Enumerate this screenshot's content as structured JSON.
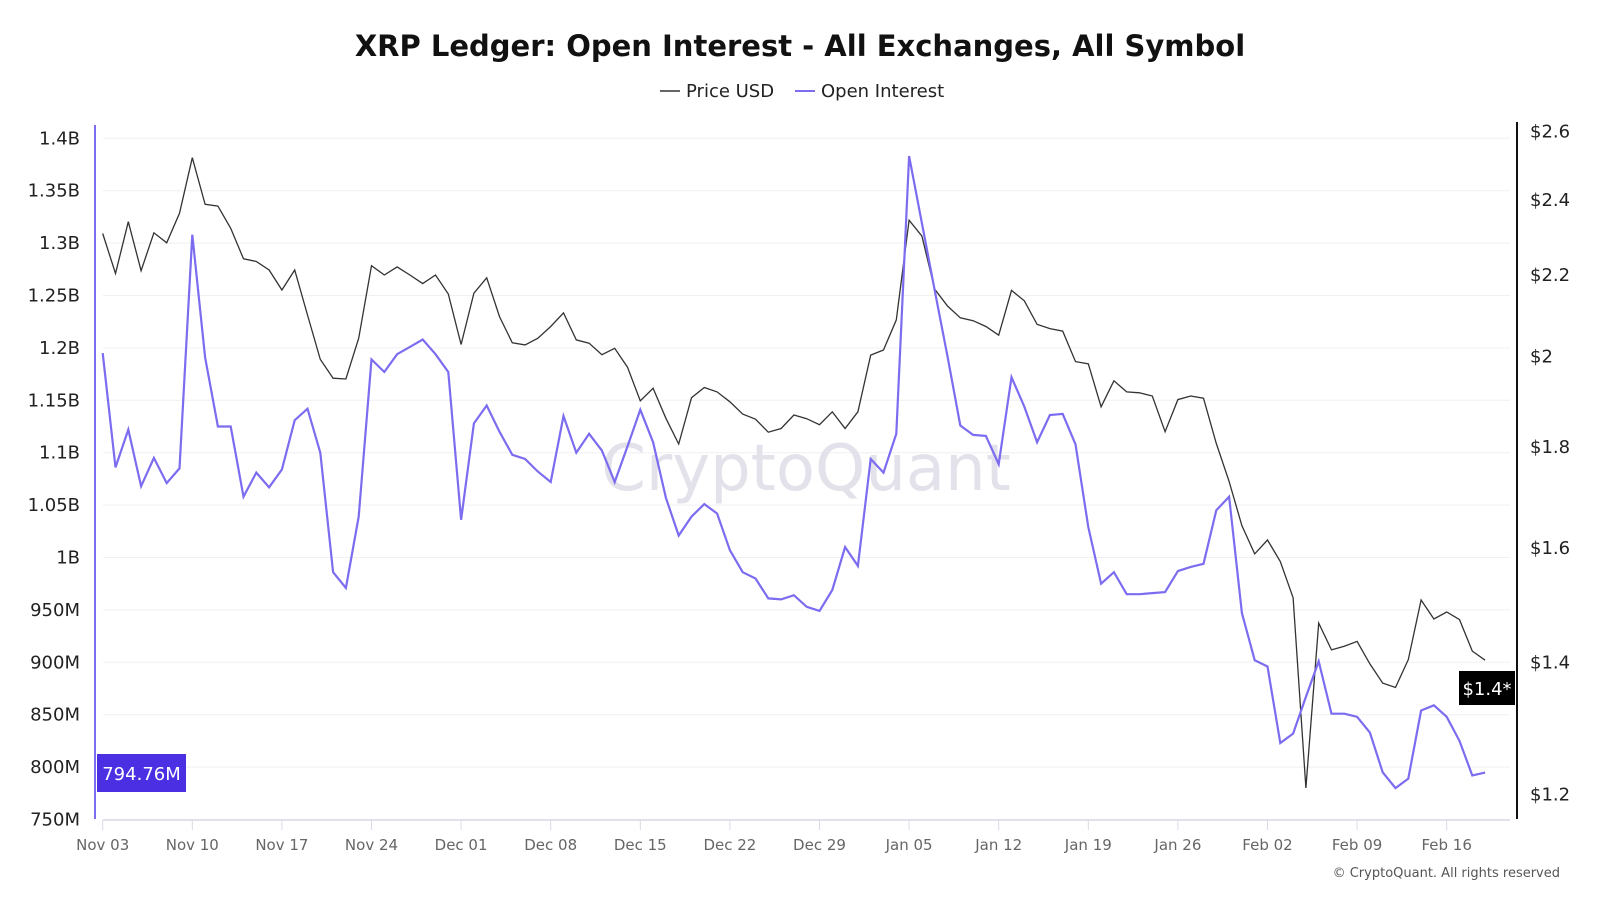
{
  "chart_data": {
    "type": "line",
    "title": "XRP Ledger: Open Interest - All Exchanges, All Symbol",
    "watermark": "CryptoQuant",
    "copyright": "© CryptoQuant. All rights reserved",
    "legend_position": "top-center",
    "grid": true,
    "x": [
      "Nov 03",
      "Nov 04",
      "Nov 05",
      "Nov 06",
      "Nov 07",
      "Nov 08",
      "Nov 09",
      "Nov 10",
      "Nov 11",
      "Nov 12",
      "Nov 13",
      "Nov 14",
      "Nov 15",
      "Nov 16",
      "Nov 17",
      "Nov 18",
      "Nov 19",
      "Nov 20",
      "Nov 21",
      "Nov 22",
      "Nov 23",
      "Nov 24",
      "Nov 25",
      "Nov 26",
      "Nov 27",
      "Nov 28",
      "Nov 29",
      "Nov 30",
      "Dec 01",
      "Dec 02",
      "Dec 03",
      "Dec 04",
      "Dec 05",
      "Dec 06",
      "Dec 07",
      "Dec 08",
      "Dec 09",
      "Dec 10",
      "Dec 11",
      "Dec 12",
      "Dec 13",
      "Dec 14",
      "Dec 15",
      "Dec 16",
      "Dec 17",
      "Dec 18",
      "Dec 19",
      "Dec 20",
      "Dec 21",
      "Dec 22",
      "Dec 23",
      "Dec 24",
      "Dec 25",
      "Dec 26",
      "Dec 27",
      "Dec 28",
      "Dec 29",
      "Dec 30",
      "Dec 31",
      "Jan 01",
      "Jan 02",
      "Jan 03",
      "Jan 04",
      "Jan 05",
      "Jan 06",
      "Jan 07",
      "Jan 08",
      "Jan 09",
      "Jan 10",
      "Jan 11",
      "Jan 12",
      "Jan 13",
      "Jan 14",
      "Jan 15",
      "Jan 16",
      "Jan 17",
      "Jan 18",
      "Jan 19",
      "Jan 20",
      "Jan 21",
      "Jan 22",
      "Jan 23",
      "Jan 24",
      "Jan 25",
      "Jan 26",
      "Jan 27",
      "Jan 28",
      "Jan 29",
      "Jan 30",
      "Jan 31",
      "Feb 01",
      "Feb 02",
      "Feb 03",
      "Feb 04",
      "Feb 05",
      "Feb 06",
      "Feb 07",
      "Feb 08",
      "Feb 09",
      "Feb 10",
      "Feb 11",
      "Feb 12",
      "Feb 13",
      "Feb 14",
      "Feb 15",
      "Feb 16",
      "Feb 17",
      "Feb 18",
      "Feb 19"
    ],
    "x_ticks": [
      "Nov 03",
      "Nov 10",
      "Nov 17",
      "Nov 24",
      "Dec 01",
      "Dec 08",
      "Dec 15",
      "Dec 22",
      "Dec 29",
      "Jan 05",
      "Jan 12",
      "Jan 19",
      "Jan 26",
      "Feb 02",
      "Feb 09",
      "Feb 16"
    ],
    "y_left": {
      "scale": "linear",
      "range": [
        750,
        1400
      ],
      "unit": "M",
      "ticks": [
        "750M",
        "800M",
        "850M",
        "900M",
        "950M",
        "1B",
        "1.05B",
        "1.1B",
        "1.15B",
        "1.2B",
        "1.25B",
        "1.3B",
        "1.35B",
        "1.4B"
      ],
      "current_label": "794.76M"
    },
    "y_right": {
      "scale": "log",
      "range": [
        1.2,
        2.6
      ],
      "ticks": [
        "$1.2",
        "$1.4",
        "$1.6",
        "$1.8",
        "$2",
        "$2.2",
        "$2.4",
        "$2.6"
      ],
      "tick_values": [
        1.2,
        1.4,
        1.6,
        1.8,
        2.0,
        2.2,
        2.4,
        2.6
      ],
      "current_label": "$1.4*"
    },
    "series": [
      {
        "name": "Price USD",
        "axis": "right",
        "color": "#333333",
        "values": [
          2.306,
          2.201,
          2.338,
          2.208,
          2.308,
          2.281,
          2.361,
          2.519,
          2.386,
          2.381,
          2.32,
          2.239,
          2.232,
          2.21,
          2.159,
          2.21,
          2.097,
          1.991,
          1.948,
          1.946,
          2.041,
          2.221,
          2.197,
          2.218,
          2.197,
          2.175,
          2.197,
          2.149,
          2.026,
          2.151,
          2.19,
          2.093,
          2.03,
          2.025,
          2.041,
          2.069,
          2.102,
          2.037,
          2.029,
          2.002,
          2.017,
          1.973,
          1.897,
          1.925,
          1.859,
          1.804,
          1.904,
          1.927,
          1.917,
          1.895,
          1.868,
          1.857,
          1.829,
          1.837,
          1.866,
          1.858,
          1.845,
          1.873,
          1.837,
          1.873,
          2.001,
          2.013,
          2.085,
          2.342,
          2.299,
          2.161,
          2.119,
          2.09,
          2.083,
          2.069,
          2.048,
          2.158,
          2.132,
          2.074,
          2.064,
          2.058,
          1.986,
          1.981,
          1.884,
          1.942,
          1.917,
          1.915,
          1.908,
          1.83,
          1.9,
          1.908,
          1.903,
          1.805,
          1.727,
          1.64,
          1.587,
          1.613,
          1.573,
          1.508,
          1.208,
          1.464,
          1.419,
          1.425,
          1.433,
          1.396,
          1.365,
          1.358,
          1.403,
          1.504,
          1.471,
          1.483,
          1.47,
          1.417,
          1.402
        ]
      },
      {
        "name": "Open Interest",
        "axis": "left",
        "color": "#7b6cf0",
        "values": [
          1195,
          1086,
          1122,
          1068,
          1095,
          1071,
          1085,
          1308,
          1191,
          1125,
          1125,
          1058,
          1081,
          1067,
          1084,
          1131,
          1142,
          1100,
          986,
          971,
          1039,
          1189,
          1177,
          1194,
          1201,
          1208,
          1194,
          1177,
          1036,
          1128,
          1145,
          1120,
          1098,
          1094,
          1082,
          1072,
          1135,
          1100,
          1118,
          1102,
          1072,
          1106,
          1141,
          1110,
          1057,
          1021,
          1039,
          1051,
          1042,
          1007,
          986,
          980,
          961,
          960,
          964,
          953,
          949,
          969,
          1010,
          992,
          1094,
          1081,
          1118,
          1383,
          1319,
          1255,
          1192,
          1126,
          1117,
          1116,
          1089,
          1172,
          1144,
          1110,
          1136,
          1137,
          1108,
          1029,
          975,
          986,
          965,
          965,
          966,
          967,
          987,
          991,
          994,
          1045,
          1058,
          947,
          902,
          896,
          823,
          832,
          867,
          901,
          851,
          851,
          848,
          833,
          795,
          780,
          789,
          854,
          859,
          848,
          825,
          792,
          794.76
        ]
      }
    ],
    "colors": {
      "oi_badge": "#4b30e3",
      "price_badge": "#000000",
      "grid": "#f0eff3",
      "watermark": "#e3e1ea"
    }
  }
}
